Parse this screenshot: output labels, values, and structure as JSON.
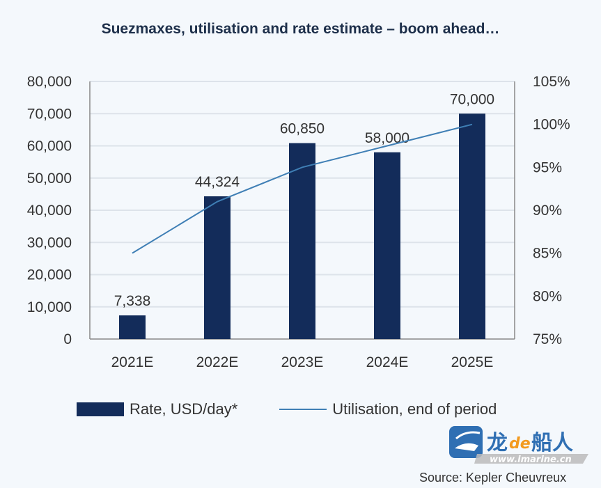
{
  "chart_data": {
    "type": "bar+line",
    "title": "Suezmaxes, utilisation and rate estimate – boom ahead…",
    "categories": [
      "2021E",
      "2022E",
      "2023E",
      "2024E",
      "2025E"
    ],
    "series": [
      {
        "name": "Rate, USD/day*",
        "type": "bar",
        "axis": "left",
        "values": [
          7338,
          44324,
          60850,
          58000,
          70000
        ],
        "labels": [
          "7,338",
          "44,324",
          "60,850",
          "58,000",
          "70,000"
        ],
        "color": "#132c5a"
      },
      {
        "name": "Utilisation, end of period",
        "type": "line",
        "axis": "right",
        "values": [
          85,
          91,
          95,
          97.5,
          100
        ],
        "color": "#3f7fb5"
      }
    ],
    "y_left": {
      "ylim": [
        0,
        80000
      ],
      "ticks": [
        "0",
        "10,000",
        "20,000",
        "30,000",
        "40,000",
        "50,000",
        "60,000",
        "70,000",
        "80,000"
      ]
    },
    "y_right": {
      "ylim": [
        75,
        105
      ],
      "ticks": [
        "75%",
        "80%",
        "85%",
        "90%",
        "95%",
        "100%",
        "105%"
      ]
    },
    "grid": true,
    "legend_position": "bottom",
    "source": "Source: Kepler Cheuvreux"
  },
  "watermark": {
    "text": "龙de船人",
    "url": "www.imarine.cn"
  }
}
